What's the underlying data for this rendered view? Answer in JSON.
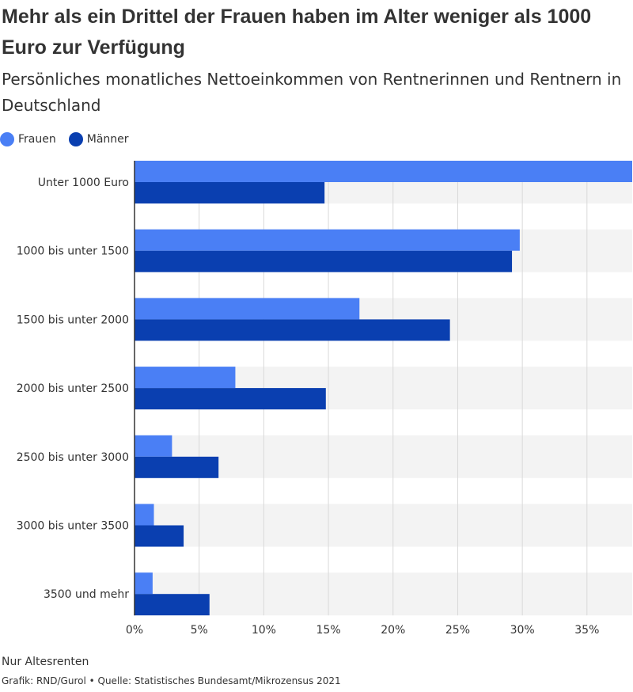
{
  "title": "Mehr als ein Drittel der Frauen haben im Alter weniger als 1000 Euro zur Verfügung",
  "subtitle": "Persönliches monatliches Nettoeinkommen von Rentnerinnen und Rentnern in Deutschland",
  "footer": {
    "note": "Nur Altesrenten",
    "source": "Grafik: RND/Gurol • Quelle: Statistisches Bundesamt/Mikrozensus 2021"
  },
  "chart_data": {
    "type": "bar",
    "orientation": "horizontal",
    "categories": [
      "Unter 1000 Euro",
      "1000 bis unter 1500",
      "1500 bis unter 2000",
      "2000 bis unter 2500",
      "2500 bis unter 3000",
      "3000 bis unter 3500",
      "3500 und mehr"
    ],
    "series": [
      {
        "name": "Frauen",
        "color": "#4a7ff5",
        "values": [
          38.5,
          29.8,
          17.4,
          7.8,
          2.9,
          1.5,
          1.4
        ]
      },
      {
        "name": "Männer",
        "color": "#0a3fb0",
        "values": [
          14.7,
          29.2,
          24.4,
          14.8,
          6.5,
          3.8,
          5.8
        ]
      }
    ],
    "xlim": [
      0,
      38.5
    ],
    "xticks": [
      0,
      5,
      10,
      15,
      20,
      25,
      30,
      35
    ],
    "tick_format": "%",
    "xlabel": "",
    "ylabel": "",
    "grid": true,
    "legend_position": "top-left",
    "band_color": "#f3f3f3",
    "grid_color": "#d9d9d9"
  }
}
